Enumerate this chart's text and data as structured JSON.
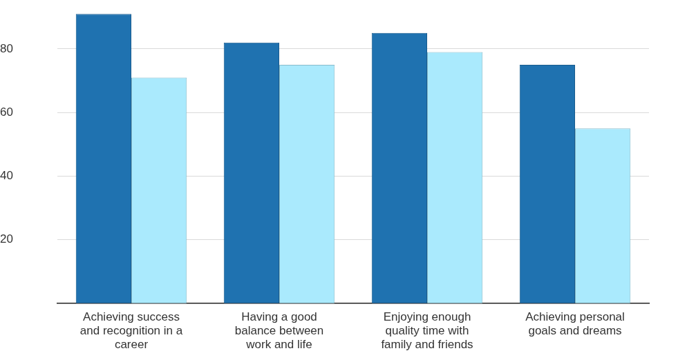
{
  "chart_data": {
    "type": "bar",
    "categories": [
      "Achieving success and recognition in a career",
      "Having a good balance between work and life",
      "Enjoying enough quality time with family and friends",
      "Achieving personal goals and dreams"
    ],
    "series": [
      {
        "color": "#1f72b0",
        "values": [
          91,
          82,
          85,
          75
        ]
      },
      {
        "color": "#aaeafd",
        "values": [
          71,
          75,
          79,
          55
        ]
      }
    ],
    "ylim": [
      0,
      91
    ],
    "yticks": [
      20,
      40,
      60,
      80
    ],
    "grid": "y",
    "legend": false
  }
}
